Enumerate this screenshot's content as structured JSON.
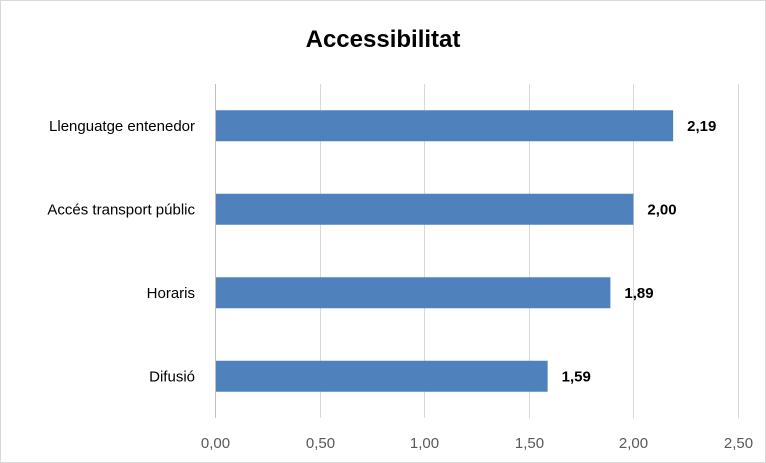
{
  "chart_data": {
    "type": "bar",
    "orientation": "horizontal",
    "title": "Accessibilitat",
    "categories": [
      "Llenguatge entenedor",
      "Accés transport públic",
      "Horaris",
      "Difusió"
    ],
    "values": [
      2.19,
      2.0,
      1.89,
      1.59
    ],
    "value_labels": [
      "2,19",
      "2,00",
      "1,89",
      "1,59"
    ],
    "xlim": [
      0,
      2.5
    ],
    "xticks": [
      0,
      0.5,
      1.0,
      1.5,
      2.0,
      2.5
    ],
    "xtick_labels": [
      "0,00",
      "0,50",
      "1,00",
      "1,50",
      "2,00",
      "2,50"
    ],
    "grid": true,
    "legend": "none",
    "bar_color": "#4f81bd"
  }
}
